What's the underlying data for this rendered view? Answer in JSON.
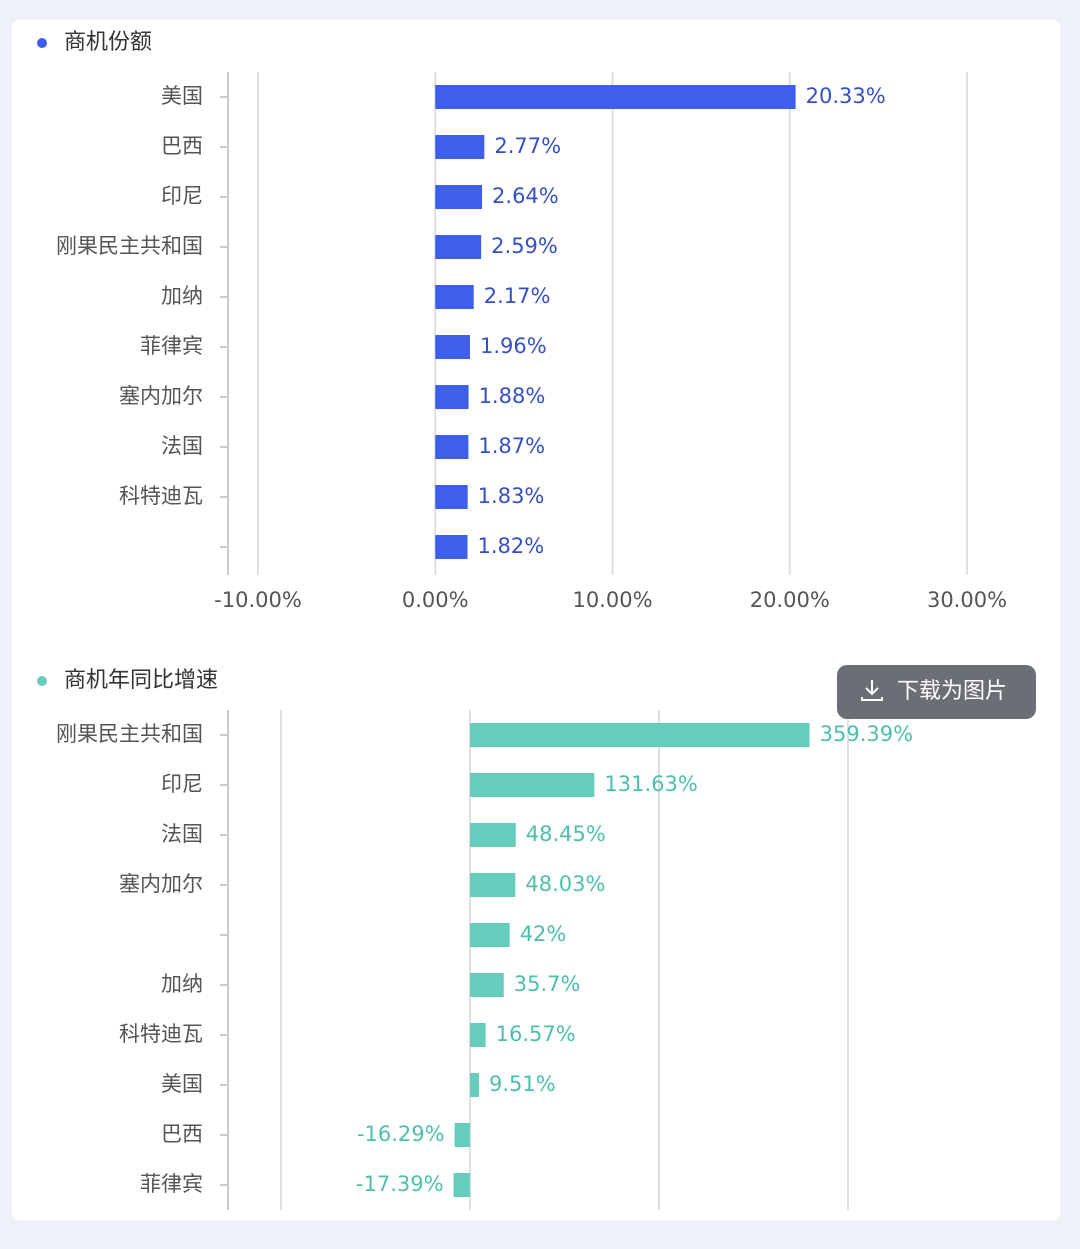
{
  "chart_data": [
    {
      "type": "bar",
      "orientation": "horizontal",
      "title": "商机份额",
      "color": "#3d5fe9",
      "label_color": "#3550c4",
      "categories": [
        "美国",
        "巴西",
        "印尼",
        "刚果民主共和国",
        "加纳",
        "菲律宾",
        "塞内加尔",
        "法国",
        "科特迪瓦",
        null
      ],
      "values": [
        20.33,
        2.77,
        2.64,
        2.59,
        2.17,
        1.96,
        1.88,
        1.87,
        1.83,
        1.82
      ],
      "value_labels": [
        "20.33%",
        "2.77%",
        "2.64%",
        "2.59%",
        "2.17%",
        "1.96%",
        "1.88%",
        "1.87%",
        "1.83%",
        "1.82%"
      ],
      "xlim": [
        -10,
        30
      ],
      "xticks": [
        {
          "value": -10,
          "label": "-10.00%"
        },
        {
          "value": 0,
          "label": "0.00%"
        },
        {
          "value": 10,
          "label": "10.00%"
        },
        {
          "value": 20,
          "label": "20.00%"
        },
        {
          "value": 30,
          "label": "30.00%"
        }
      ],
      "grid": true,
      "tick_labels": true
    },
    {
      "type": "bar",
      "orientation": "horizontal",
      "title": "商机年同比增速",
      "color": "#66cdbd",
      "label_color": "#4cbfad",
      "categories": [
        "刚果民主共和国",
        "印尼",
        "法国",
        "塞内加尔",
        null,
        "加纳",
        "科特迪瓦",
        "美国",
        "巴西",
        "菲律宾"
      ],
      "values": [
        359.39,
        131.63,
        48.45,
        48.03,
        42,
        35.7,
        16.57,
        9.51,
        -16.29,
        -17.39
      ],
      "value_labels": [
        "359.39%",
        "131.63%",
        "48.45%",
        "48.03%",
        "42%",
        "35.7%",
        "16.57%",
        "9.51%",
        "-16.29%",
        "-17.39%"
      ],
      "xlim": [
        -200,
        400
      ],
      "xticks": [
        -200,
        0,
        200,
        400
      ],
      "grid": true,
      "tick_labels": false
    }
  ],
  "button": {
    "label": "下载为图片"
  }
}
